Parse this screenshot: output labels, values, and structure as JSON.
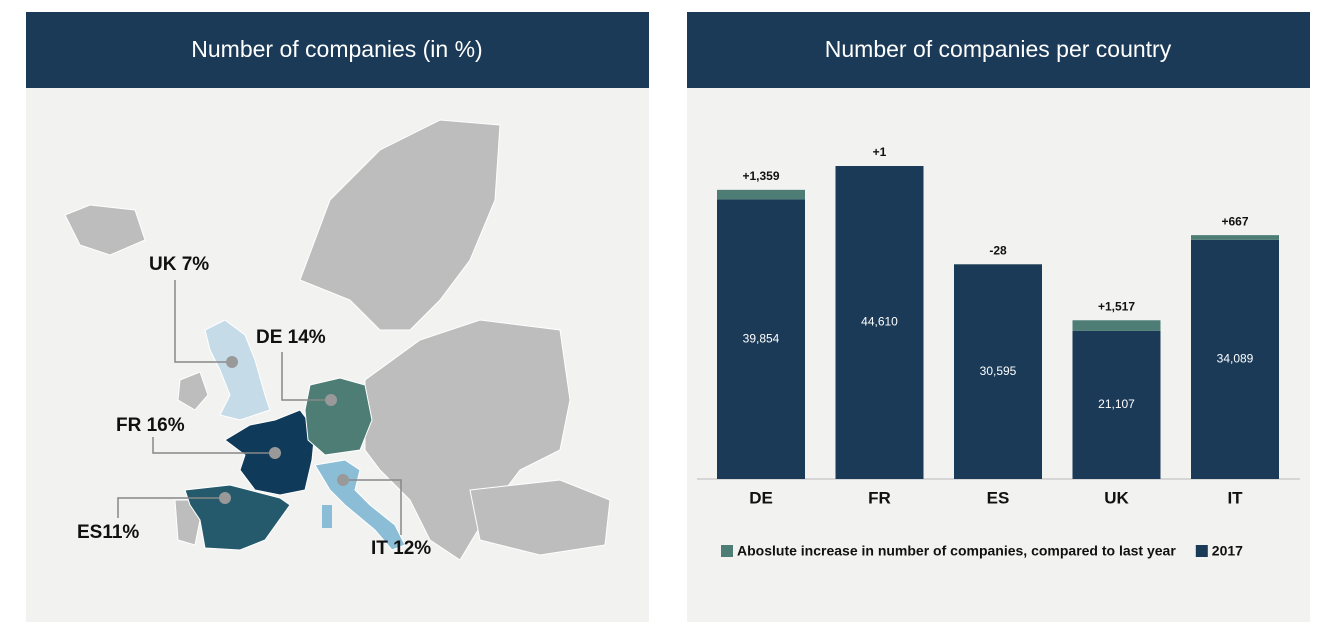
{
  "map": {
    "title": "Number of companies (in %)",
    "labels": [
      "UK 7%",
      "DE 14%",
      "FR 16%",
      "ES11%",
      "IT 12%"
    ]
  },
  "chart_data": {
    "type": "bar",
    "stacked": true,
    "title": "Number of companies per country",
    "categories": [
      "DE",
      "FR",
      "ES",
      "UK",
      "IT"
    ],
    "series": [
      {
        "name": "Aboslute increase in number of companies, compared to last year",
        "color": "#4e7d75",
        "values": [
          1359,
          1,
          -28,
          1517,
          667
        ],
        "value_labels": [
          "+1,359",
          "+1",
          "-28",
          "+1,517",
          "+667"
        ]
      },
      {
        "name": "2017",
        "color": "#1b3a57",
        "values": [
          39854,
          44610,
          30595,
          21107,
          34089
        ],
        "value_labels": [
          "39,854",
          "44,610",
          "30,595",
          "21,107",
          "34,089"
        ]
      }
    ]
  }
}
